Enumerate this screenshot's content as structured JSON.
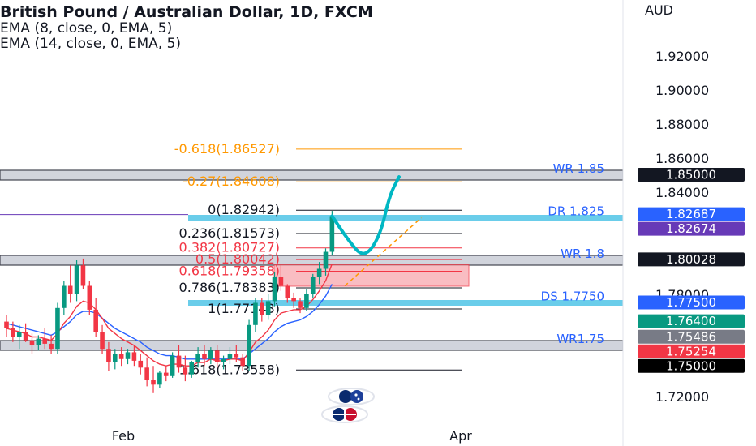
{
  "header": {
    "title": "British Pound / Australian Dollar, 1D, FXCM",
    "indicators": [
      "EMA (8, close, 0, EMA, 5)",
      "EMA (14, close, 0, EMA, 5)"
    ]
  },
  "colors": {
    "bull": "#089981",
    "bear": "#f23645",
    "ema8": "#f23645",
    "ema14": "#2962ff",
    "fib_orange": "#ff9800",
    "fib_red": "#f23645",
    "fib_grey": "#131722",
    "zone_grey": "#434651",
    "zone_blue": "#5ac8e8",
    "zone_pink": "#f7a8ae",
    "drawing": "#00b7c3",
    "level_text": "#2962ff"
  },
  "chart_data": {
    "type": "candlestick",
    "y_axis_title": "AUD",
    "y_ticks": [
      "1.72000",
      "1.78000",
      "1.84000",
      "1.86000",
      "1.88000",
      "1.90000",
      "1.92000"
    ],
    "x_ticks": [
      "Feb",
      "Apr"
    ],
    "ylim": [
      1.7,
      1.94
    ],
    "candles": [
      {
        "o": 1.764,
        "h": 1.768,
        "l": 1.755,
        "c": 1.76
      },
      {
        "o": 1.76,
        "h": 1.764,
        "l": 1.752,
        "c": 1.755
      },
      {
        "o": 1.755,
        "h": 1.762,
        "l": 1.748,
        "c": 1.758
      },
      {
        "o": 1.758,
        "h": 1.763,
        "l": 1.752,
        "c": 1.753
      },
      {
        "o": 1.753,
        "h": 1.757,
        "l": 1.745,
        "c": 1.75
      },
      {
        "o": 1.75,
        "h": 1.756,
        "l": 1.747,
        "c": 1.754
      },
      {
        "o": 1.754,
        "h": 1.76,
        "l": 1.748,
        "c": 1.751
      },
      {
        "o": 1.751,
        "h": 1.756,
        "l": 1.745,
        "c": 1.748
      },
      {
        "o": 1.748,
        "h": 1.775,
        "l": 1.745,
        "c": 1.772
      },
      {
        "o": 1.772,
        "h": 1.788,
        "l": 1.768,
        "c": 1.785
      },
      {
        "o": 1.785,
        "h": 1.797,
        "l": 1.775,
        "c": 1.78
      },
      {
        "o": 1.78,
        "h": 1.8,
        "l": 1.776,
        "c": 1.797
      },
      {
        "o": 1.797,
        "h": 1.801,
        "l": 1.783,
        "c": 1.785
      },
      {
        "o": 1.785,
        "h": 1.788,
        "l": 1.768,
        "c": 1.771
      },
      {
        "o": 1.771,
        "h": 1.778,
        "l": 1.755,
        "c": 1.758
      },
      {
        "o": 1.758,
        "h": 1.762,
        "l": 1.745,
        "c": 1.748
      },
      {
        "o": 1.748,
        "h": 1.752,
        "l": 1.735,
        "c": 1.74
      },
      {
        "o": 1.74,
        "h": 1.748,
        "l": 1.736,
        "c": 1.745
      },
      {
        "o": 1.745,
        "h": 1.749,
        "l": 1.738,
        "c": 1.742
      },
      {
        "o": 1.742,
        "h": 1.748,
        "l": 1.739,
        "c": 1.746
      },
      {
        "o": 1.746,
        "h": 1.75,
        "l": 1.738,
        "c": 1.741
      },
      {
        "o": 1.741,
        "h": 1.745,
        "l": 1.733,
        "c": 1.737
      },
      {
        "o": 1.737,
        "h": 1.743,
        "l": 1.726,
        "c": 1.73
      },
      {
        "o": 1.73,
        "h": 1.738,
        "l": 1.722,
        "c": 1.727
      },
      {
        "o": 1.727,
        "h": 1.735,
        "l": 1.725,
        "c": 1.734
      },
      {
        "o": 1.734,
        "h": 1.738,
        "l": 1.729,
        "c": 1.732
      },
      {
        "o": 1.732,
        "h": 1.746,
        "l": 1.731,
        "c": 1.744
      },
      {
        "o": 1.744,
        "h": 1.75,
        "l": 1.734,
        "c": 1.737
      },
      {
        "o": 1.737,
        "h": 1.744,
        "l": 1.729,
        "c": 1.733
      },
      {
        "o": 1.733,
        "h": 1.741,
        "l": 1.731,
        "c": 1.74
      },
      {
        "o": 1.74,
        "h": 1.749,
        "l": 1.737,
        "c": 1.745
      },
      {
        "o": 1.745,
        "h": 1.75,
        "l": 1.738,
        "c": 1.742
      },
      {
        "o": 1.742,
        "h": 1.749,
        "l": 1.739,
        "c": 1.747
      },
      {
        "o": 1.747,
        "h": 1.75,
        "l": 1.737,
        "c": 1.74
      },
      {
        "o": 1.74,
        "h": 1.744,
        "l": 1.736,
        "c": 1.742
      },
      {
        "o": 1.742,
        "h": 1.749,
        "l": 1.739,
        "c": 1.745
      },
      {
        "o": 1.745,
        "h": 1.75,
        "l": 1.74,
        "c": 1.743
      },
      {
        "o": 1.743,
        "h": 1.745,
        "l": 1.735,
        "c": 1.738
      },
      {
        "o": 1.738,
        "h": 1.765,
        "l": 1.735,
        "c": 1.762
      },
      {
        "o": 1.762,
        "h": 1.778,
        "l": 1.758,
        "c": 1.775
      },
      {
        "o": 1.775,
        "h": 1.778,
        "l": 1.764,
        "c": 1.768
      },
      {
        "o": 1.768,
        "h": 1.78,
        "l": 1.765,
        "c": 1.776
      },
      {
        "o": 1.776,
        "h": 1.793,
        "l": 1.773,
        "c": 1.79
      },
      {
        "o": 1.79,
        "h": 1.797,
        "l": 1.782,
        "c": 1.785
      },
      {
        "o": 1.785,
        "h": 1.786,
        "l": 1.775,
        "c": 1.778
      },
      {
        "o": 1.778,
        "h": 1.781,
        "l": 1.772,
        "c": 1.776
      },
      {
        "o": 1.776,
        "h": 1.778,
        "l": 1.769,
        "c": 1.772
      },
      {
        "o": 1.772,
        "h": 1.783,
        "l": 1.77,
        "c": 1.78
      },
      {
        "o": 1.78,
        "h": 1.792,
        "l": 1.778,
        "c": 1.79
      },
      {
        "o": 1.79,
        "h": 1.799,
        "l": 1.786,
        "c": 1.795
      },
      {
        "o": 1.795,
        "h": 1.807,
        "l": 1.791,
        "c": 1.805
      },
      {
        "o": 1.805,
        "h": 1.829,
        "l": 1.803,
        "c": 1.826
      }
    ],
    "ema8": [
      1.76,
      1.759,
      1.758,
      1.757,
      1.755,
      1.755,
      1.754,
      1.753,
      1.757,
      1.763,
      1.767,
      1.773,
      1.776,
      1.775,
      1.771,
      1.766,
      1.76,
      1.757,
      1.754,
      1.752,
      1.75,
      1.747,
      1.744,
      1.741,
      1.739,
      1.738,
      1.739,
      1.739,
      1.738,
      1.738,
      1.74,
      1.74,
      1.742,
      1.741,
      1.741,
      1.742,
      1.742,
      1.741,
      1.746,
      1.752,
      1.755,
      1.759,
      1.765,
      1.769,
      1.77,
      1.771,
      1.771,
      1.773,
      1.777,
      1.782,
      1.788,
      1.798
    ],
    "ema14": [
      1.763,
      1.762,
      1.761,
      1.76,
      1.759,
      1.758,
      1.757,
      1.756,
      1.758,
      1.761,
      1.764,
      1.768,
      1.77,
      1.77,
      1.769,
      1.766,
      1.763,
      1.76,
      1.758,
      1.756,
      1.754,
      1.752,
      1.749,
      1.747,
      1.745,
      1.744,
      1.744,
      1.743,
      1.742,
      1.742,
      1.742,
      1.742,
      1.742,
      1.742,
      1.742,
      1.742,
      1.742,
      1.742,
      1.745,
      1.748,
      1.751,
      1.754,
      1.758,
      1.761,
      1.763,
      1.764,
      1.765,
      1.767,
      1.77,
      1.774,
      1.779,
      1.786
    ],
    "fib_levels": [
      {
        "label": "-0.618(1.86527)",
        "value": 1.86527,
        "color": "orange"
      },
      {
        "label": "-0.27(1.84608)",
        "value": 1.84608,
        "color": "orange"
      },
      {
        "label": "0(1.82942)",
        "value": 1.82942,
        "color": "grey"
      },
      {
        "label": "0.236(1.81573)",
        "value": 1.81573,
        "color": "grey"
      },
      {
        "label": "0.382(1.80727)",
        "value": 1.80727,
        "color": "red"
      },
      {
        "label": "0.5(1.80042)",
        "value": 1.80042,
        "color": "red"
      },
      {
        "label": "0.618(1.79358)",
        "value": 1.79358,
        "color": "red"
      },
      {
        "label": "0.786(1.78383)",
        "value": 1.78383,
        "color": "grey"
      },
      {
        "label": "1(1.77143)",
        "value": 1.77143,
        "color": "grey"
      },
      {
        "label": "1.618(1.73558)",
        "value": 1.73558,
        "color": "grey"
      }
    ],
    "zones": [
      {
        "label": "WR 1.85",
        "value": 1.85,
        "style": "grey"
      },
      {
        "label": "DR 1.825",
        "value": 1.825,
        "style": "blue"
      },
      {
        "label": "WR 1.8",
        "value": 1.8,
        "style": "grey"
      },
      {
        "label": "DS 1.7750",
        "value": 1.775,
        "style": "blue"
      },
      {
        "label": "WR1.75",
        "value": 1.75,
        "style": "grey"
      }
    ],
    "price_badges": [
      {
        "text": "1.85000",
        "value": 1.85,
        "bg": "#131722"
      },
      {
        "text": "1.82687",
        "value": 1.82687,
        "bg": "#2962ff"
      },
      {
        "text": "1.82674",
        "value": 1.82674,
        "bg": "#673ab7"
      },
      {
        "text": "1.80028",
        "value": 1.80028,
        "bg": "#131722"
      },
      {
        "text": "1.77500",
        "value": 1.775,
        "bg": "#2962ff"
      },
      {
        "text": "1.76400",
        "value": 1.764,
        "bg": "#089981"
      },
      {
        "text": "1.75486",
        "value": 1.75486,
        "bg": "#787b86"
      },
      {
        "text": "1.75254",
        "value": 1.75254,
        "bg": "#f23645"
      },
      {
        "text": "1.75000",
        "value": 1.75,
        "bg": "#000000"
      }
    ],
    "projection": [
      {
        "bar": 51,
        "value": 1.826
      },
      {
        "bar": 53.5,
        "value": 1.812
      },
      {
        "bar": 56,
        "value": 1.801
      },
      {
        "bar": 58.5,
        "value": 1.814
      },
      {
        "bar": 60,
        "value": 1.838
      },
      {
        "bar": 61.5,
        "value": 1.849
      }
    ],
    "trendline": [
      {
        "bar": 53,
        "value": 1.785
      },
      {
        "bar": 65,
        "value": 1.825
      }
    ]
  }
}
